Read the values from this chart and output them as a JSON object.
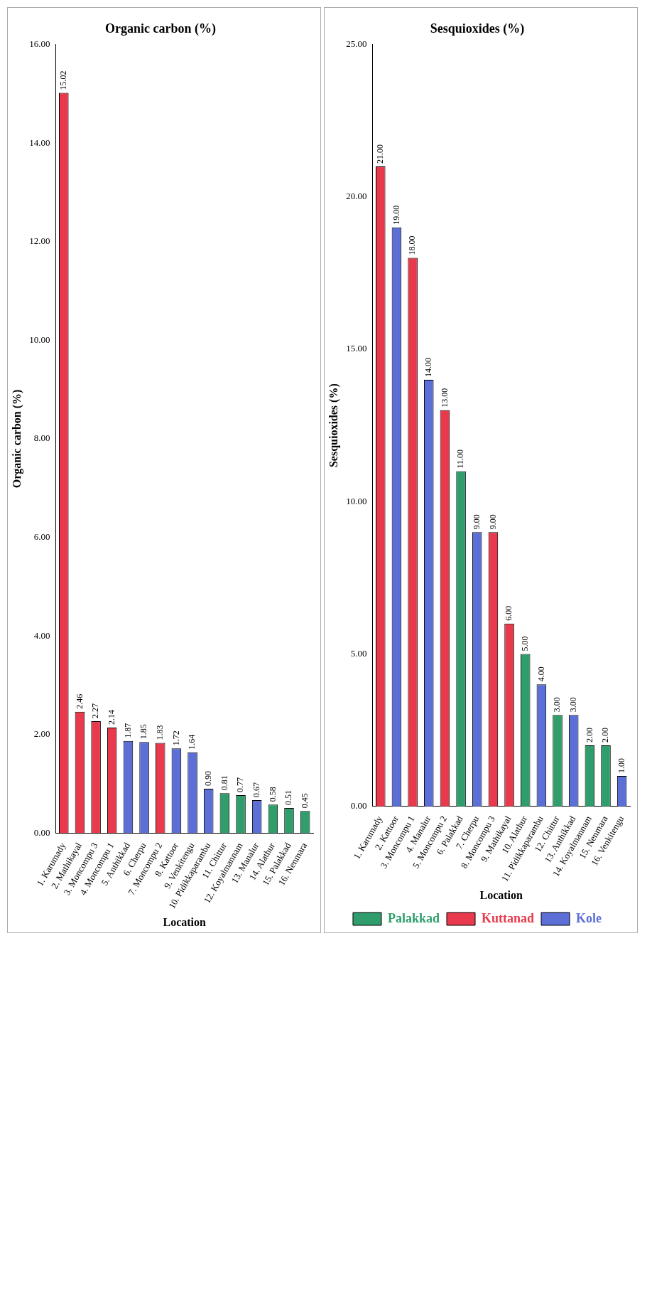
{
  "chart_data": [
    {
      "type": "bar",
      "title": "Organic carbon (%)",
      "xlabel": "Location",
      "ylabel": "Organic carbon (%)",
      "categories": [
        "1. Karumady",
        "2. Mathikayal",
        "3. Moncompu 3",
        "4. Moncompu 1",
        "5. Anthikkad",
        "6. Cherpu",
        "7. Moncompu 2",
        "8. Kattoor",
        "9. Venkitengu",
        "10. Pidikkaparambu",
        "11. Chittur",
        "12. Koyalmannam",
        "13. Manalur",
        "14. Alathur",
        "15. Palakkad",
        "16. Nenmara"
      ],
      "series": [
        {
          "color": "#2f9e6c",
          "values": [
            null,
            null,
            null,
            null,
            null,
            null,
            null,
            null,
            null,
            null,
            0.81,
            0.77,
            null,
            0.58,
            0.51,
            0.45
          ],
          "value_labels": [
            null,
            null,
            null,
            null,
            null,
            null,
            null,
            null,
            null,
            null,
            "0.81",
            "0.77",
            null,
            "0.58",
            "0.51",
            "0.45"
          ]
        },
        {
          "color": "#e83a4c",
          "values": [
            15.02,
            2.46,
            2.27,
            2.14,
            null,
            null,
            1.83,
            null,
            null,
            null,
            null,
            null,
            null,
            null,
            null,
            null
          ],
          "value_labels": [
            "15.02",
            "2.46",
            "2.27",
            "2.14",
            null,
            null,
            "1.83",
            null,
            null,
            null,
            null,
            null,
            null,
            null,
            null,
            null
          ]
        },
        {
          "color": "#5b6fd6",
          "values": [
            null,
            null,
            null,
            null,
            1.87,
            1.85,
            null,
            1.72,
            1.64,
            0.9,
            null,
            null,
            0.67,
            null,
            null,
            null
          ],
          "value_labels": [
            null,
            null,
            null,
            null,
            "1.87",
            "1.85",
            null,
            "1.72",
            "1.64",
            "0.90",
            null,
            null,
            "0.67",
            null,
            null,
            null
          ]
        }
      ],
      "ylim": [
        0,
        16
      ],
      "yticks": [
        {
          "value": 0,
          "label": "0.00"
        },
        {
          "value": 2,
          "label": "2.00"
        },
        {
          "value": 4,
          "label": "4.00"
        },
        {
          "value": 6,
          "label": "6.00"
        },
        {
          "value": 8,
          "label": "8.00"
        },
        {
          "value": 10,
          "label": "10.00"
        },
        {
          "value": 12,
          "label": "12.00"
        },
        {
          "value": 14,
          "label": "14.00"
        },
        {
          "value": 16,
          "label": "16.00"
        }
      ]
    },
    {
      "type": "bar",
      "title": "Sesquioxides (%)",
      "xlabel": "Location",
      "ylabel": "Sesquioxides (%)",
      "legend": "bottom",
      "categories": [
        "1. Karumady",
        "2. Kattoor",
        "3. Moncompu 1",
        "4. Manalur",
        "5. Moncompu 2",
        "6. Palakkad",
        "7. Cherpu",
        "8. Moncompu 3",
        "9. Mathikayal",
        "10. Alathur",
        "11. Pidikkaparambu",
        "12. Chittur",
        "13. Anthikkad",
        "14. Koyalmannam",
        "15. Nenmara",
        "16. Venkitengu"
      ],
      "series": [
        {
          "name": "Palakkad",
          "color": "#2f9e6c",
          "values": [
            null,
            null,
            null,
            null,
            null,
            11,
            null,
            null,
            null,
            5,
            null,
            3,
            null,
            2,
            2,
            null
          ],
          "value_labels": [
            null,
            null,
            null,
            null,
            null,
            "11.00",
            null,
            null,
            null,
            "5.00",
            null,
            "3.00",
            null,
            "2.00",
            "2.00",
            null
          ]
        },
        {
          "name": "Kuttanad",
          "color": "#e83a4c",
          "values": [
            21,
            null,
            18,
            null,
            13,
            null,
            null,
            9,
            6,
            null,
            null,
            null,
            null,
            null,
            null,
            null
          ],
          "value_labels": [
            "21.00",
            null,
            "18.00",
            null,
            "13.00",
            null,
            null,
            "9.00",
            "6.00",
            null,
            null,
            null,
            null,
            null,
            null,
            null
          ]
        },
        {
          "name": "Kole",
          "color": "#5b6fd6",
          "values": [
            null,
            19,
            null,
            14,
            null,
            null,
            9,
            null,
            null,
            null,
            4,
            null,
            3,
            null,
            null,
            1
          ],
          "value_labels": [
            null,
            "19.00",
            null,
            "14.00",
            null,
            null,
            "9.00",
            null,
            null,
            null,
            "4.00",
            null,
            "3.00",
            null,
            null,
            "1.00"
          ]
        }
      ],
      "ylim": [
        0,
        25
      ],
      "yticks": [
        {
          "value": 0,
          "label": "0.00"
        },
        {
          "value": 5,
          "label": "5.00"
        },
        {
          "value": 10,
          "label": "10.00"
        },
        {
          "value": 15,
          "label": "15.00"
        },
        {
          "value": 20,
          "label": "20.00"
        },
        {
          "value": 25,
          "label": "25.00"
        }
      ]
    }
  ]
}
